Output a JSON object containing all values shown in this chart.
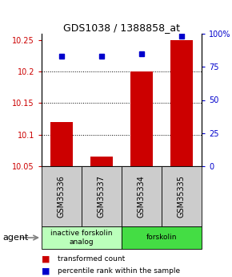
{
  "title": "GDS1038 / 1388858_at",
  "samples": [
    "GSM35336",
    "GSM35337",
    "GSM35334",
    "GSM35335"
  ],
  "red_values": [
    10.12,
    10.065,
    10.2,
    10.25
  ],
  "blue_values": [
    83,
    83,
    85,
    98
  ],
  "ylim_left": [
    10.05,
    10.26
  ],
  "ylim_right": [
    0,
    100
  ],
  "yticks_left": [
    10.05,
    10.1,
    10.15,
    10.2,
    10.25
  ],
  "yticks_right": [
    0,
    25,
    50,
    75,
    100
  ],
  "ytick_labels_right": [
    "0",
    "25",
    "50",
    "75",
    "100%"
  ],
  "bar_color": "#cc0000",
  "dot_color": "#0000cc",
  "agent_labels": [
    "inactive forskolin\nanalog",
    "forskolin"
  ],
  "agent_bg_light": "#bbffbb",
  "agent_bg_dark": "#44dd44",
  "sample_bg": "#cccccc",
  "legend_red": "transformed count",
  "legend_blue": "percentile rank within the sample",
  "agent_text": "agent"
}
